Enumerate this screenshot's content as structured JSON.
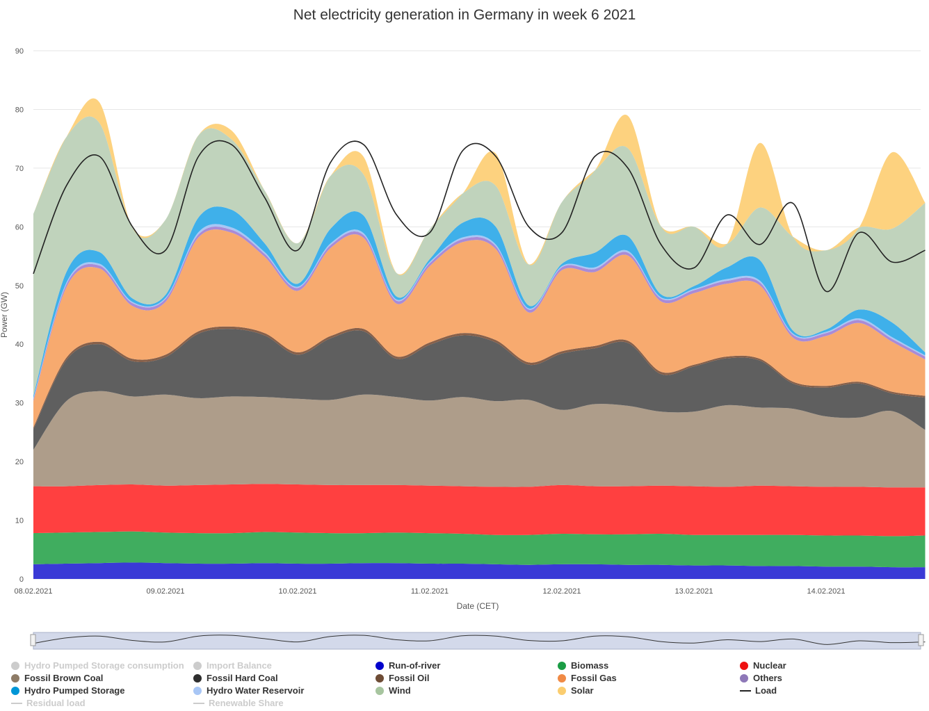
{
  "chart_data": {
    "type": "area",
    "title": "Net electricity generation in Germany in week 6 2021",
    "xlabel": "Date (CET)",
    "ylabel": "Power (GW)",
    "ylim": [
      0,
      90
    ],
    "yticks": [
      0,
      10,
      20,
      30,
      40,
      50,
      60,
      70,
      80,
      90
    ],
    "xtick_labels": [
      "08.02.2021",
      "09.02.2021",
      "10.02.2021",
      "11.02.2021",
      "12.02.2021",
      "13.02.2021",
      "14.02.2021"
    ],
    "x_days": [
      0,
      0.25,
      0.5,
      0.75,
      1.0,
      1.25,
      1.5,
      1.75,
      2.0,
      2.25,
      2.5,
      2.75,
      3.0,
      3.25,
      3.5,
      3.75,
      4.0,
      4.25,
      4.5,
      4.75,
      5.0,
      5.25,
      5.5,
      5.75,
      6.0,
      6.25,
      6.5,
      6.75
    ],
    "grid": true,
    "legend_position": "bottom",
    "stack_order": [
      "run_of_river",
      "biomass",
      "nuclear",
      "brown_coal",
      "hard_coal",
      "oil",
      "gas",
      "others",
      "reservoir",
      "pumped",
      "wind",
      "solar"
    ],
    "series": [
      {
        "key": "run_of_river",
        "name": "Run-of-river",
        "color": "#3a3ad6",
        "values": [
          2.5,
          2.6,
          2.7,
          2.8,
          2.7,
          2.6,
          2.6,
          2.7,
          2.6,
          2.6,
          2.7,
          2.7,
          2.6,
          2.6,
          2.5,
          2.4,
          2.5,
          2.5,
          2.4,
          2.4,
          2.3,
          2.3,
          2.2,
          2.2,
          2.1,
          2.1,
          2.0,
          2.0
        ]
      },
      {
        "key": "biomass",
        "name": "Biomass",
        "color": "#40ad5f",
        "values": [
          5.3,
          5.3,
          5.3,
          5.3,
          5.2,
          5.2,
          5.2,
          5.3,
          5.3,
          5.2,
          5.1,
          5.2,
          5.2,
          5.1,
          5.0,
          5.1,
          5.2,
          5.1,
          5.2,
          5.3,
          5.2,
          5.2,
          5.3,
          5.3,
          5.3,
          5.3,
          5.3,
          5.4
        ]
      },
      {
        "key": "nuclear",
        "name": "Nuclear",
        "color": "#ff4040",
        "values": [
          8.0,
          7.9,
          8.0,
          8.0,
          8.0,
          8.2,
          8.3,
          8.2,
          8.2,
          8.2,
          8.2,
          8.1,
          8.1,
          8.1,
          8.2,
          8.2,
          8.3,
          8.2,
          8.2,
          8.2,
          8.3,
          8.2,
          8.4,
          8.3,
          8.3,
          8.3,
          8.3,
          8.2
        ]
      },
      {
        "key": "brown_coal",
        "name": "Fossil Brown Coal",
        "color": "#ae9d8a",
        "values": [
          6.2,
          14.5,
          16.0,
          15.0,
          15.5,
          14.8,
          15.0,
          14.8,
          14.6,
          14.5,
          15.4,
          15.0,
          14.5,
          15.2,
          14.6,
          14.8,
          12.8,
          14.0,
          13.7,
          12.6,
          12.7,
          13.9,
          13.3,
          13.2,
          12.0,
          11.8,
          13.0,
          9.8
        ]
      },
      {
        "key": "hard_coal",
        "name": "Fossil Hard Coal",
        "color": "#5f5f5f",
        "values": [
          3.5,
          7.0,
          8.0,
          6.0,
          6.4,
          11.0,
          11.5,
          10.5,
          7.5,
          10.5,
          10.8,
          6.5,
          9.5,
          10.5,
          10.0,
          6.0,
          9.6,
          9.5,
          10.7,
          6.4,
          7.7,
          8.0,
          8.0,
          4.3,
          4.9,
          5.8,
          3.0,
          5.5
        ]
      },
      {
        "key": "oil",
        "name": "Fossil Oil",
        "color": "#87604a",
        "values": [
          0.3,
          0.4,
          0.4,
          0.4,
          0.4,
          0.4,
          0.4,
          0.4,
          0.4,
          0.4,
          0.4,
          0.4,
          0.4,
          0.4,
          0.4,
          0.4,
          0.4,
          0.4,
          0.4,
          0.4,
          0.3,
          0.3,
          0.3,
          0.3,
          0.3,
          0.3,
          0.3,
          0.3
        ]
      },
      {
        "key": "gas",
        "name": "Fossil Gas",
        "color": "#f7aa6f",
        "values": [
          4.5,
          12.0,
          12.5,
          9.0,
          9.0,
          16.0,
          16.0,
          13.0,
          10.5,
          15.0,
          15.5,
          9.0,
          13.0,
          15.5,
          15.5,
          8.5,
          13.8,
          12.6,
          14.5,
          12.0,
          12.2,
          12.4,
          12.5,
          7.5,
          8.5,
          10.0,
          8.5,
          6.2
        ]
      },
      {
        "key": "others",
        "name": "Others",
        "color": "#a98bd6",
        "values": [
          0.3,
          0.5,
          0.5,
          0.5,
          0.5,
          0.5,
          0.5,
          0.5,
          0.5,
          0.5,
          0.5,
          0.5,
          0.5,
          0.5,
          0.5,
          0.5,
          0.5,
          0.5,
          0.5,
          0.5,
          0.5,
          0.5,
          0.5,
          0.5,
          0.5,
          0.5,
          0.5,
          0.5
        ]
      },
      {
        "key": "reservoir",
        "name": "Hydro Water Reservoir",
        "color": "#a8c6f5",
        "values": [
          0.2,
          0.3,
          0.3,
          0.2,
          0.2,
          0.4,
          0.4,
          0.3,
          0.2,
          0.3,
          0.3,
          0.2,
          0.2,
          0.3,
          0.3,
          0.2,
          0.2,
          0.3,
          0.3,
          0.2,
          0.2,
          0.3,
          0.3,
          0.2,
          0.2,
          0.3,
          0.3,
          0.2
        ]
      },
      {
        "key": "pumped",
        "name": "Hydro Pumped Storage",
        "color": "#3fb0ea",
        "values": [
          0.4,
          1.8,
          2.0,
          0.6,
          0.5,
          2.5,
          3.0,
          1.5,
          0.5,
          2.5,
          3.0,
          0.5,
          0.5,
          2.5,
          3.0,
          0.5,
          0.4,
          2.5,
          2.5,
          0.5,
          0.5,
          2.0,
          3.5,
          0.5,
          0.4,
          1.5,
          2.5,
          0.5
        ]
      },
      {
        "key": "wind",
        "name": "Wind",
        "color": "#c0d3bc",
        "values": [
          31.0,
          23.0,
          22.0,
          12.0,
          12.8,
          14.0,
          12.0,
          9.0,
          6.9,
          9.0,
          7.0,
          4.0,
          5.1,
          5.0,
          7.0,
          7.0,
          10.5,
          14.0,
          15.0,
          11.6,
          10.1,
          4.0,
          9.0,
          16.0,
          13.5,
          14.0,
          16.0,
          25.5
        ]
      },
      {
        "key": "solar",
        "name": "Solar",
        "color": "#fdd27f",
        "values": [
          0,
          0,
          3.5,
          0,
          0,
          0,
          1.5,
          0,
          0,
          0,
          3.0,
          0,
          0,
          0,
          5.5,
          0,
          0,
          0,
          5.5,
          0,
          0,
          0,
          11.0,
          0,
          0,
          0,
          13.0,
          0
        ]
      },
      {
        "key": "pumped_consumption",
        "name": "Hydro Pumped Storage consumption",
        "color": "#cccccc",
        "hidden": true
      },
      {
        "key": "import_balance",
        "name": "Import Balance",
        "color": "#cccccc",
        "hidden": true
      },
      {
        "key": "residual_load",
        "name": "Residual load",
        "color": "#cccccc",
        "hidden": true
      },
      {
        "key": "renewable_share",
        "name": "Renewable Share",
        "color": "#cccccc",
        "hidden": true
      },
      {
        "key": "load",
        "name": "Load",
        "color": "#222222",
        "type": "line",
        "values": [
          52.0,
          67.0,
          72.0,
          60.0,
          56.0,
          72.0,
          74.0,
          65.0,
          56.0,
          71.0,
          74.0,
          62.0,
          59.0,
          73.0,
          72.0,
          60.0,
          59.0,
          72.0,
          70.0,
          57.0,
          53.0,
          62.0,
          57.0,
          64.0,
          49.0,
          59.0,
          54.0,
          56.0
        ]
      }
    ]
  },
  "legend": {
    "items": [
      {
        "key": "pumped_consumption",
        "label": "Hydro Pumped Storage consumption",
        "color": "#cccccc",
        "marker": "dot",
        "hidden": true
      },
      {
        "key": "import_balance",
        "label": "Import Balance",
        "color": "#cccccc",
        "marker": "dot",
        "hidden": true
      },
      {
        "key": "run_of_river",
        "label": "Run-of-river",
        "color": "#0000cc",
        "marker": "dot"
      },
      {
        "key": "biomass",
        "label": "Biomass",
        "color": "#1a9c44",
        "marker": "dot"
      },
      {
        "key": "nuclear",
        "label": "Nuclear",
        "color": "#ee1111",
        "marker": "dot"
      },
      {
        "key": "brown_coal",
        "label": "Fossil Brown Coal",
        "color": "#8e7b66",
        "marker": "dot"
      },
      {
        "key": "hard_coal",
        "label": "Fossil Hard Coal",
        "color": "#2e2e2e",
        "marker": "dot"
      },
      {
        "key": "oil",
        "label": "Fossil Oil",
        "color": "#6e4c35",
        "marker": "dot"
      },
      {
        "key": "gas",
        "label": "Fossil Gas",
        "color": "#f08a45",
        "marker": "dot"
      },
      {
        "key": "others",
        "label": "Others",
        "color": "#8e78b8",
        "marker": "dot"
      },
      {
        "key": "pumped",
        "label": "Hydro Pumped Storage",
        "color": "#0096d6",
        "marker": "dot"
      },
      {
        "key": "reservoir",
        "label": "Hydro Water Reservoir",
        "color": "#a8c6f5",
        "marker": "dot"
      },
      {
        "key": "wind",
        "label": "Wind",
        "color": "#a7c59f",
        "marker": "dot"
      },
      {
        "key": "solar",
        "label": "Solar",
        "color": "#fbcd6f",
        "marker": "dot"
      },
      {
        "key": "load",
        "label": "Load",
        "color": "#222222",
        "marker": "line"
      },
      {
        "key": "residual_load",
        "label": "Residual load",
        "color": "#cccccc",
        "marker": "line",
        "hidden": true
      },
      {
        "key": "renewable_share",
        "label": "Renewable Share",
        "color": "#cccccc",
        "marker": "line",
        "hidden": true
      }
    ]
  }
}
